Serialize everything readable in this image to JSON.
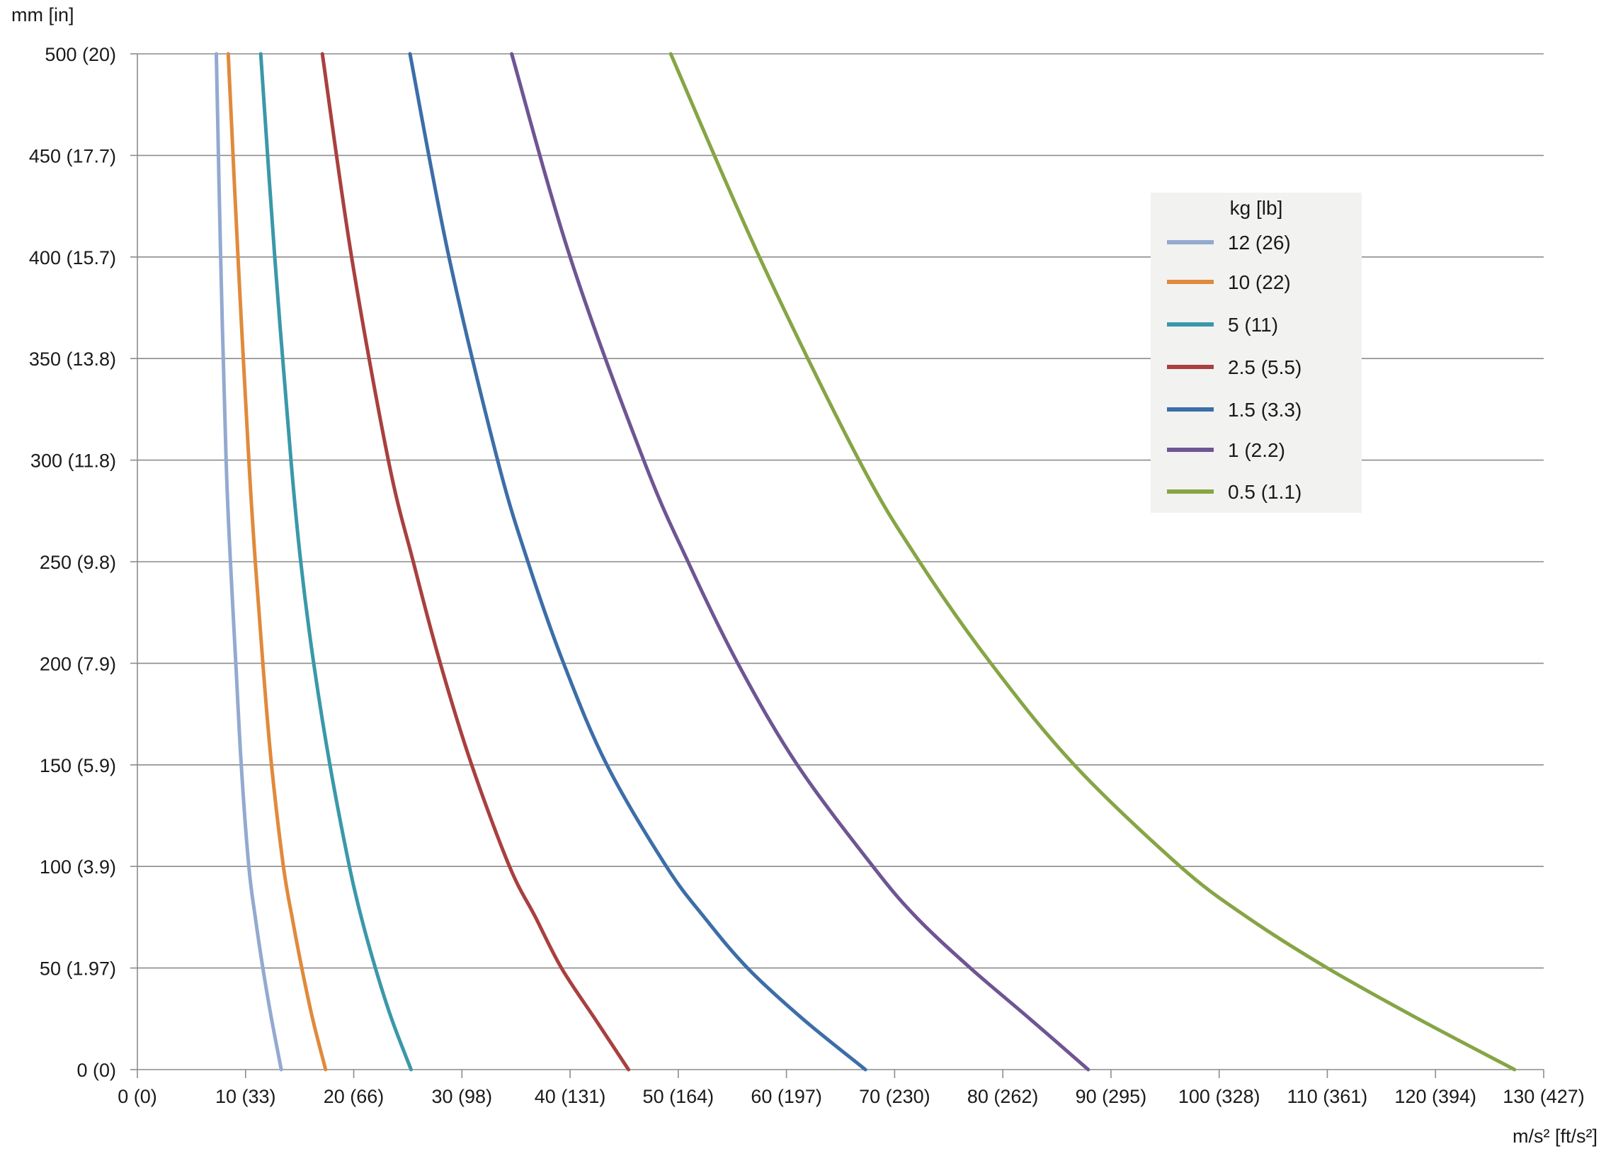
{
  "chart_data": {
    "type": "line",
    "ylabel": "mm [in]",
    "xlabel": "m/s² [ft/s²]",
    "xlim": [
      0,
      130
    ],
    "ylim": [
      0,
      500
    ],
    "grid": "horizontal",
    "x_ticks": [
      {
        "value": 0,
        "label": "0 (0)"
      },
      {
        "value": 10,
        "label": "10 (33)"
      },
      {
        "value": 20,
        "label": "20 (66)"
      },
      {
        "value": 30,
        "label": "30 (98)"
      },
      {
        "value": 40,
        "label": "40 (131)"
      },
      {
        "value": 50,
        "label": "50 (164)"
      },
      {
        "value": 60,
        "label": "60 (197)"
      },
      {
        "value": 70,
        "label": "70 (230)"
      },
      {
        "value": 80,
        "label": "80 (262)"
      },
      {
        "value": 90,
        "label": "90 (295)"
      },
      {
        "value": 100,
        "label": "100 (328)"
      },
      {
        "value": 110,
        "label": "110 (361)"
      },
      {
        "value": 120,
        "label": "120 (394)"
      },
      {
        "value": 130,
        "label": "130 (427)"
      }
    ],
    "y_ticks": [
      {
        "value": 0,
        "label": "0 (0)"
      },
      {
        "value": 50,
        "label": "50 (1.97)"
      },
      {
        "value": 100,
        "label": "100 (3.9)"
      },
      {
        "value": 150,
        "label": "150 (5.9)"
      },
      {
        "value": 200,
        "label": "200 (7.9)"
      },
      {
        "value": 250,
        "label": "250 (9.8)"
      },
      {
        "value": 300,
        "label": "300 (11.8)"
      },
      {
        "value": 350,
        "label": "350 (13.8)"
      },
      {
        "value": 400,
        "label": "400 (15.7)"
      },
      {
        "value": 450,
        "label": "450 (17.7)"
      },
      {
        "value": 500,
        "label": "500 (20)"
      }
    ],
    "legend": {
      "title": "kg [lb]",
      "position": "top-right"
    },
    "series": [
      {
        "name": "12 (26)",
        "color": "#93A9D0",
        "points": [
          [
            13.3,
            0
          ],
          [
            12.4,
            25
          ],
          [
            11.6,
            50
          ],
          [
            10.9,
            75
          ],
          [
            10.3,
            100
          ],
          [
            9.6,
            150
          ],
          [
            9.1,
            200
          ],
          [
            8.6,
            250
          ],
          [
            8.2,
            300
          ],
          [
            7.7,
            400
          ],
          [
            7.3,
            500
          ]
        ]
      },
      {
        "name": "10 (22)",
        "color": "#E08A3C",
        "points": [
          [
            17.4,
            0
          ],
          [
            16.2,
            25
          ],
          [
            15.2,
            50
          ],
          [
            14.3,
            75
          ],
          [
            13.5,
            100
          ],
          [
            12.4,
            150
          ],
          [
            11.6,
            200
          ],
          [
            10.9,
            250
          ],
          [
            10.3,
            300
          ],
          [
            9.3,
            400
          ],
          [
            8.4,
            500
          ]
        ]
      },
      {
        "name": "5 (11)",
        "color": "#3A98AA",
        "points": [
          [
            25.3,
            0
          ],
          [
            23.5,
            25
          ],
          [
            22.0,
            50
          ],
          [
            20.7,
            75
          ],
          [
            19.6,
            100
          ],
          [
            17.8,
            150
          ],
          [
            16.3,
            200
          ],
          [
            15.1,
            250
          ],
          [
            14.2,
            300
          ],
          [
            12.7,
            400
          ],
          [
            11.4,
            500
          ]
        ]
      },
      {
        "name": "2.5 (5.5)",
        "color": "#A8403F",
        "points": [
          [
            45.4,
            0
          ],
          [
            42.3,
            25
          ],
          [
            39.2,
            50
          ],
          [
            36.8,
            75
          ],
          [
            34.4,
            100
          ],
          [
            30.9,
            150
          ],
          [
            28.0,
            200
          ],
          [
            25.5,
            250
          ],
          [
            23.2,
            300
          ],
          [
            19.8,
            400
          ],
          [
            17.1,
            500
          ]
        ]
      },
      {
        "name": "1.5 (3.3)",
        "color": "#3C6EA8",
        "points": [
          [
            67.3,
            0
          ],
          [
            61.5,
            25
          ],
          [
            56.4,
            50
          ],
          [
            52.4,
            75
          ],
          [
            48.9,
            100
          ],
          [
            43.4,
            150
          ],
          [
            39.4,
            200
          ],
          [
            36.1,
            250
          ],
          [
            33.3,
            300
          ],
          [
            28.8,
            400
          ],
          [
            25.2,
            500
          ]
        ]
      },
      {
        "name": "1 (2.2)",
        "color": "#6F5593",
        "points": [
          [
            87.9,
            0
          ],
          [
            82.5,
            25
          ],
          [
            77.0,
            50
          ],
          [
            72.0,
            75
          ],
          [
            68.0,
            100
          ],
          [
            61.0,
            150
          ],
          [
            55.5,
            200
          ],
          [
            50.9,
            250
          ],
          [
            46.8,
            300
          ],
          [
            40.0,
            400
          ],
          [
            34.6,
            500
          ]
        ]
      },
      {
        "name": "0.5 (1.1)",
        "color": "#86A545",
        "points": [
          [
            127.3,
            0
          ],
          [
            118.4,
            25
          ],
          [
            110.0,
            50
          ],
          [
            102.6,
            75
          ],
          [
            96.4,
            100
          ],
          [
            86.6,
            150
          ],
          [
            78.9,
            200
          ],
          [
            72.3,
            250
          ],
          [
            66.7,
            300
          ],
          [
            57.5,
            400
          ],
          [
            49.3,
            500
          ]
        ]
      }
    ]
  }
}
